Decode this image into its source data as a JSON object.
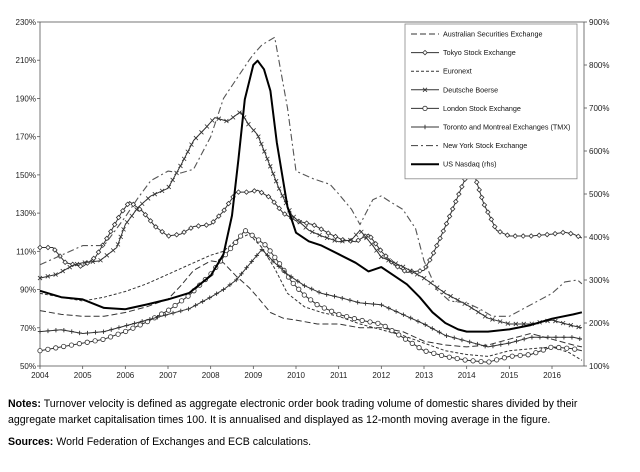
{
  "chart_data": {
    "type": "line",
    "title": "",
    "xlabel": "",
    "ylabel": "",
    "y_left": {
      "ticks": [
        "50%",
        "70%",
        "90%",
        "110%",
        "130%",
        "150%",
        "170%",
        "190%",
        "210%",
        "230%"
      ],
      "range": [
        50,
        230
      ]
    },
    "y_right": {
      "ticks": [
        "100%",
        "200%",
        "300%",
        "400%",
        "500%",
        "600%",
        "700%",
        "800%",
        "900%"
      ],
      "range": [
        100,
        900
      ]
    },
    "x_ticks": [
      "2004",
      "2005",
      "2006",
      "2007",
      "2008",
      "2009",
      "2010",
      "2011",
      "2012",
      "2013",
      "2014",
      "2015",
      "2016"
    ],
    "x_range": [
      2004,
      2016.75
    ],
    "grid": false,
    "legend_position": "top-right",
    "series": [
      {
        "name": "Australian Securities Exchange",
        "axis": "left",
        "style": "dashed-long",
        "color": "#333333",
        "x": [
          2004,
          2004.5,
          2005,
          2005.5,
          2006,
          2006.5,
          2007,
          2007.3,
          2007.6,
          2008,
          2008.3,
          2008.6,
          2008.9,
          2009.1,
          2009.4,
          2009.7,
          2010,
          2010.5,
          2011,
          2011.5,
          2012,
          2012.5,
          2013,
          2013.5,
          2014,
          2014.5,
          2015,
          2015.5,
          2016,
          2016.5,
          2016.7
        ],
        "y": [
          79,
          77,
          76,
          76,
          78,
          81,
          85,
          92,
          100,
          105,
          104,
          97,
          91,
          86,
          78,
          75,
          74,
          72,
          72,
          70,
          70,
          68,
          63,
          61,
          60,
          61,
          64,
          67,
          64,
          61,
          60
        ]
      },
      {
        "name": "Tokyo Stock Exchange",
        "axis": "left",
        "style": "solid-diamond",
        "color": "#333333",
        "x": [
          2004,
          2004.3,
          2004.6,
          2005,
          2005.3,
          2005.6,
          2005.9,
          2006.1,
          2006.4,
          2006.7,
          2007,
          2007.3,
          2007.6,
          2008,
          2008.3,
          2008.6,
          2008.9,
          2009.1,
          2009.4,
          2009.7,
          2010,
          2010.4,
          2010.8,
          2011.1,
          2011.4,
          2011.7,
          2012,
          2012.3,
          2012.6,
          2013,
          2013.2,
          2013.5,
          2013.8,
          2014,
          2014.15,
          2014.4,
          2014.7,
          2015,
          2015.5,
          2016,
          2016.3,
          2016.5,
          2016.7
        ],
        "y": [
          112,
          112,
          104,
          102,
          107,
          118,
          130,
          136,
          131,
          123,
          118,
          119,
          123,
          124,
          131,
          141,
          141,
          142,
          138,
          130,
          126,
          124,
          119,
          116,
          115,
          119,
          110,
          103,
          99,
          100,
          108,
          123,
          139,
          150,
          152,
          135,
          121,
          118,
          118,
          119,
          120,
          119,
          117
        ]
      },
      {
        "name": "Euronext",
        "axis": "left",
        "style": "dashed-short",
        "color": "#333333",
        "x": [
          2004,
          2004.5,
          2005,
          2005.5,
          2006,
          2006.5,
          2007,
          2007.5,
          2008,
          2008.3,
          2008.6,
          2008.9,
          2009.2,
          2009.5,
          2009.8,
          2010.2,
          2010.6,
          2011,
          2011.5,
          2012,
          2012.5,
          2013,
          2013.5,
          2014,
          2014.5,
          2015,
          2015.5,
          2016,
          2016.4,
          2016.7
        ],
        "y": [
          88,
          86,
          84,
          86,
          89,
          93,
          98,
          103,
          108,
          110,
          116,
          119,
          112,
          101,
          88,
          81,
          78,
          76,
          72,
          69,
          66,
          62,
          58,
          56,
          55,
          58,
          59,
          60,
          57,
          53
        ]
      },
      {
        "name": "Deutsche Boerse",
        "axis": "left",
        "style": "solid-x",
        "color": "#333333",
        "x": [
          2004,
          2004.4,
          2004.8,
          2005,
          2005.4,
          2005.8,
          2006,
          2006.3,
          2006.6,
          2007,
          2007.3,
          2007.6,
          2007.9,
          2008.1,
          2008.4,
          2008.7,
          2008.9,
          2009.1,
          2009.3,
          2009.6,
          2009.9,
          2010.3,
          2010.6,
          2011,
          2011.3,
          2011.5,
          2011.8,
          2012,
          2012.5,
          2013,
          2013.5,
          2014,
          2014.5,
          2015,
          2015.5,
          2016,
          2016.5,
          2016.7
        ],
        "y": [
          96,
          98,
          103,
          104,
          105,
          112,
          124,
          133,
          139,
          143,
          155,
          168,
          175,
          180,
          178,
          183,
          176,
          171,
          160,
          143,
          129,
          121,
          118,
          115,
          116,
          121,
          113,
          107,
          102,
          96,
          88,
          82,
          75,
          72,
          72,
          74,
          71,
          70
        ]
      },
      {
        "name": "London Stock Exchange",
        "axis": "left",
        "style": "solid-circle",
        "color": "#333333",
        "x": [
          2004,
          2004.5,
          2005,
          2005.5,
          2006,
          2006.5,
          2007,
          2007.5,
          2008,
          2008.3,
          2008.6,
          2008.8,
          2009,
          2009.3,
          2009.6,
          2009.9,
          2010.2,
          2010.5,
          2011,
          2011.5,
          2012,
          2012.5,
          2013,
          2013.5,
          2014,
          2014.5,
          2015,
          2015.5,
          2016,
          2016.5,
          2016.7
        ],
        "y": [
          58,
          60,
          62,
          64,
          68,
          73,
          79,
          87,
          98,
          107,
          115,
          121,
          118,
          113,
          104,
          94,
          87,
          82,
          77,
          74,
          72,
          65,
          58,
          55,
          53,
          52,
          55,
          56,
          60,
          59,
          58
        ]
      },
      {
        "name": "Toronto and Montreal Exchanges (TMX)",
        "axis": "left",
        "style": "solid-plus",
        "color": "#333333",
        "x": [
          2004,
          2004.5,
          2005,
          2005.5,
          2006,
          2006.5,
          2007,
          2007.5,
          2008,
          2008.3,
          2008.6,
          2008.9,
          2009.2,
          2009.5,
          2009.8,
          2010.2,
          2010.6,
          2011,
          2011.5,
          2012,
          2012.5,
          2013,
          2013.5,
          2014,
          2014.5,
          2015,
          2015.5,
          2016,
          2016.5,
          2016.7
        ],
        "y": [
          68,
          69,
          67,
          68,
          71,
          74,
          77,
          80,
          86,
          90,
          95,
          103,
          111,
          104,
          98,
          92,
          88,
          86,
          83,
          82,
          77,
          72,
          66,
          63,
          60,
          62,
          65,
          65,
          65,
          64
        ]
      },
      {
        "name": "New York Stock Exchange",
        "axis": "left",
        "style": "dashdot",
        "color": "#555555",
        "x": [
          2004,
          2004.5,
          2005,
          2005.5,
          2006,
          2006.3,
          2006.6,
          2007,
          2007.3,
          2007.6,
          2008,
          2008.3,
          2008.6,
          2008.9,
          2009,
          2009.2,
          2009.5,
          2009.8,
          2010,
          2010.4,
          2010.8,
          2011,
          2011.3,
          2011.5,
          2011.8,
          2012,
          2012.2,
          2012.5,
          2012.8,
          2013,
          2013.3,
          2013.6,
          2014,
          2014.3,
          2014.6,
          2015,
          2015.5,
          2016,
          2016.3,
          2016.6,
          2016.7
        ],
        "y": [
          103,
          108,
          113,
          113,
          128,
          138,
          147,
          152,
          151,
          153,
          170,
          190,
          200,
          210,
          213,
          218,
          222,
          185,
          152,
          148,
          145,
          140,
          132,
          124,
          137,
          139,
          136,
          132,
          122,
          105,
          90,
          84,
          83,
          80,
          76,
          76,
          82,
          88,
          94,
          95,
          93
        ]
      },
      {
        "name": "US Nasdaq (rhs)",
        "axis": "right",
        "style": "solid-thick",
        "color": "#000000",
        "x": [
          2004,
          2004.5,
          2005,
          2005.5,
          2006,
          2006.5,
          2007,
          2007.5,
          2008,
          2008.3,
          2008.5,
          2008.65,
          2008.8,
          2009,
          2009.1,
          2009.25,
          2009.4,
          2009.55,
          2009.8,
          2010,
          2010.3,
          2010.6,
          2011,
          2011.4,
          2011.7,
          2012,
          2012.3,
          2012.6,
          2012.9,
          2013.2,
          2013.5,
          2013.8,
          2014,
          2014.5,
          2015,
          2015.5,
          2016,
          2016.5,
          2016.7
        ],
        "y": [
          275,
          260,
          255,
          235,
          232,
          243,
          255,
          270,
          310,
          360,
          450,
          580,
          720,
          800,
          810,
          790,
          740,
          620,
          470,
          410,
          390,
          380,
          360,
          340,
          320,
          330,
          310,
          290,
          260,
          225,
          200,
          185,
          180,
          180,
          185,
          195,
          210,
          220,
          225
        ]
      }
    ]
  },
  "notes": {
    "label": "Notes:",
    "text": " Turnover velocity is defined as aggregate electronic order book trading volume of domestic shares divided by their aggregate market capitalisation times 100. It is annualised and displayed as 12-month moving average in the figure."
  },
  "sources": {
    "label": "Sources:",
    "text": " World Federation of Exchanges and ECB calculations."
  }
}
